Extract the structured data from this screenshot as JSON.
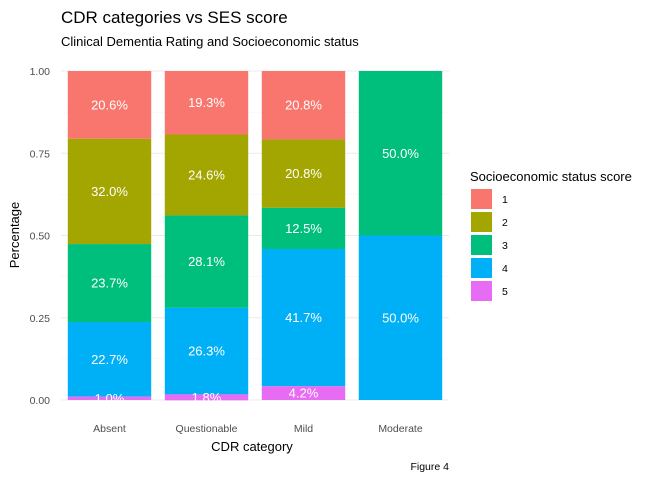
{
  "chart_data": {
    "type": "bar",
    "stacked": true,
    "title": "CDR categories vs SES score",
    "subtitle": "Clinical Dementia Rating and Socioeconomic status",
    "xlabel": "CDR category",
    "ylabel": "Percentage",
    "caption": "Figure 4",
    "categories": [
      "Absent",
      "Questionable",
      "Mild",
      "Moderate"
    ],
    "ylim": [
      0,
      1
    ],
    "yticks": [
      0,
      0.25,
      0.5,
      0.75,
      1
    ],
    "ytick_labels": [
      "0.00",
      "0.25",
      "0.50",
      "0.75",
      "1.00"
    ],
    "grid": true,
    "legend": {
      "title": "Socioeconomic status score",
      "position": "right"
    },
    "series": [
      {
        "name": "1",
        "color": "#F8766D",
        "values": [
          0.206,
          0.193,
          0.208,
          0.0
        ],
        "labels": [
          "20.6%",
          "19.3%",
          "20.8%",
          ""
        ]
      },
      {
        "name": "2",
        "color": "#A3A500",
        "values": [
          0.32,
          0.246,
          0.208,
          0.0
        ],
        "labels": [
          "32.0%",
          "24.6%",
          "20.8%",
          ""
        ]
      },
      {
        "name": "3",
        "color": "#00BF7D",
        "values": [
          0.237,
          0.281,
          0.125,
          0.5
        ],
        "labels": [
          "23.7%",
          "28.1%",
          "12.5%",
          "50.0%"
        ]
      },
      {
        "name": "4",
        "color": "#00B0F6",
        "values": [
          0.227,
          0.263,
          0.417,
          0.5
        ],
        "labels": [
          "22.7%",
          "26.3%",
          "41.7%",
          "50.0%"
        ]
      },
      {
        "name": "5",
        "color": "#E76BF3",
        "values": [
          0.01,
          0.018,
          0.042,
          0.0
        ],
        "labels": [
          "1.0%",
          "1.8%",
          "4.2%",
          ""
        ]
      }
    ]
  }
}
